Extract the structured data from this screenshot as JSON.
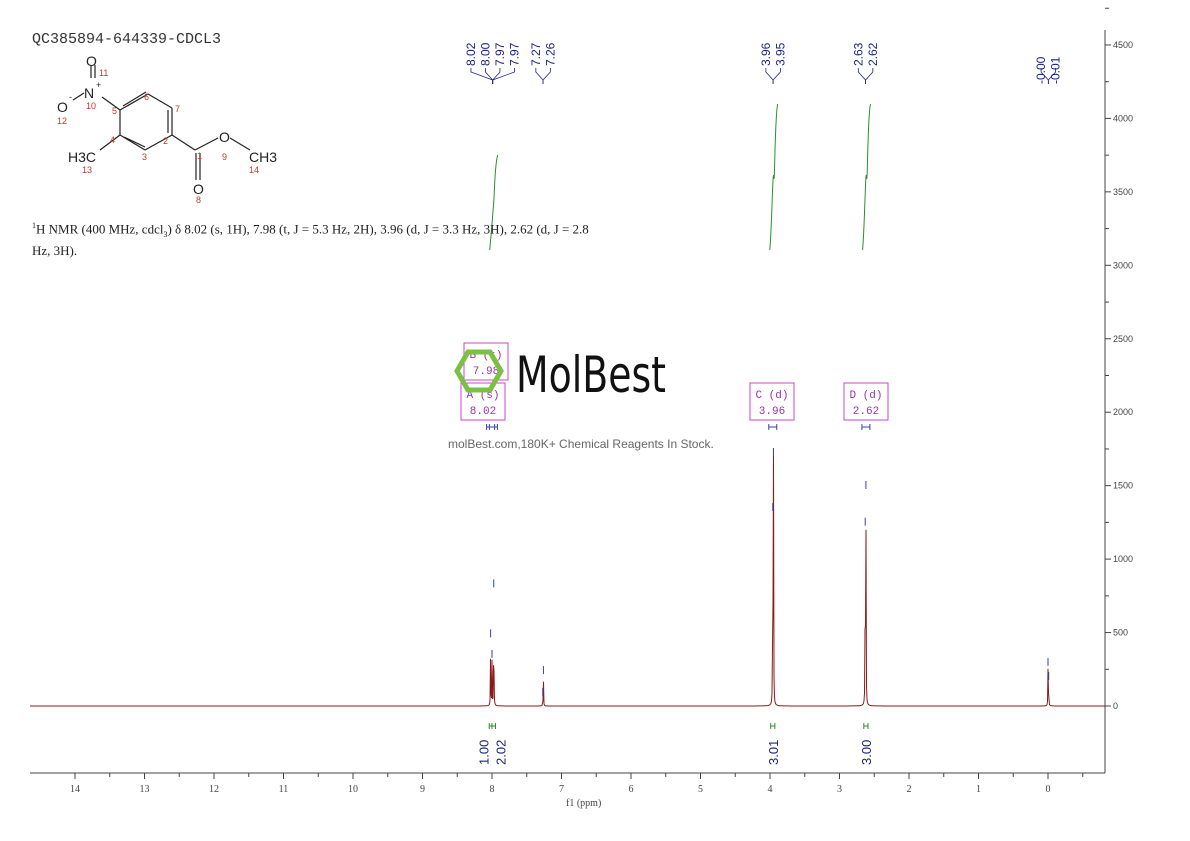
{
  "title": "QC385894-644339-CDCL3",
  "nmr_description": {
    "prefix_sup": "1",
    "text": "H NMR (400 MHz, cdcl",
    "sub": "3",
    "rest": ") δ 8.02 (s, 1H), 7.98 (t, J = 5.3 Hz, 2H), 3.96 (d, J = 3.3 Hz, 3H), 2.62 (d, J = 2.8 Hz, 3H)."
  },
  "structure": {
    "atoms": {
      "O11": "O",
      "N10": "N",
      "charge_plus": "+",
      "O12": "O",
      "charge_minus": "-",
      "CH3_13": "H3C",
      "O9": "O",
      "CH3_14": "CH3",
      "O8": "O"
    },
    "numbers": [
      "1",
      "2",
      "3",
      "4",
      "5",
      "6",
      "7",
      "8",
      "9",
      "10",
      "11",
      "12",
      "13",
      "14"
    ]
  },
  "watermark": {
    "logo_text": "MolBest",
    "tagline": "molBest.com,180K+ Chemical Reagents In Stock.",
    "logo_color": "#7ac143"
  },
  "chart_data": {
    "type": "line",
    "xlabel": "f1 (ppm)",
    "xlim": [
      14.6,
      -0.8
    ],
    "ylim": [
      -450,
      4600
    ],
    "x_ticks": [
      "14",
      "13",
      "12",
      "11",
      "10",
      "9",
      "8",
      "7",
      "6",
      "5",
      "4",
      "3",
      "2",
      "1",
      "0"
    ],
    "y_ticks": [
      "0",
      "500",
      "1000",
      "1500",
      "2000",
      "2500",
      "3000",
      "3500",
      "4000",
      "4500"
    ],
    "spectrum_color": "#8b1a1a",
    "integral_color": "#2e8b2e",
    "label_color": "#1a237e",
    "multiplet_box_color": "#cc44cc",
    "peaks": [
      {
        "ppm": 8.02,
        "intensity": 440
      },
      {
        "ppm": 8.0,
        "intensity": 300
      },
      {
        "ppm": 7.975,
        "intensity": 780
      },
      {
        "ppm": 7.27,
        "intensity": 40
      },
      {
        "ppm": 7.26,
        "intensity": 190
      },
      {
        "ppm": 3.96,
        "intensity": 1300
      },
      {
        "ppm": 3.95,
        "intensity": 1675
      },
      {
        "ppm": 2.63,
        "intensity": 1200
      },
      {
        "ppm": 2.62,
        "intensity": 1450
      },
      {
        "ppm": 0.0,
        "intensity": 245
      },
      {
        "ppm": -0.01,
        "intensity": 150
      }
    ],
    "peak_label_groups": [
      {
        "labels": [
          "8.02",
          "8.00",
          "7.97",
          "7.97"
        ],
        "ppm": 7.99
      },
      {
        "labels": [
          "7.27",
          "7.26"
        ],
        "ppm": 7.265
      },
      {
        "labels": [
          "3.96",
          "3.95"
        ],
        "ppm": 3.955
      },
      {
        "labels": [
          "2.63",
          "2.62"
        ],
        "ppm": 2.625
      },
      {
        "labels": [
          "-0.00",
          "-0.01"
        ],
        "ppm": -0.005
      }
    ],
    "integrals": [
      {
        "from": 8.04,
        "to": 8.0,
        "value": "1.00"
      },
      {
        "from": 8.0,
        "to": 7.95,
        "value": "2.02"
      },
      {
        "from": 3.99,
        "to": 3.93,
        "value": "3.01"
      },
      {
        "from": 2.65,
        "to": 2.59,
        "value": "3.00"
      }
    ],
    "multiplets": [
      {
        "name": "B (t)",
        "shift": "7.98",
        "ppm": 7.98
      },
      {
        "name": "A (s)",
        "shift": "8.02",
        "ppm": 8.02
      },
      {
        "name": "C (d)",
        "shift": "3.96",
        "ppm": 3.96
      },
      {
        "name": "D (d)",
        "shift": "2.62",
        "ppm": 2.62
      }
    ]
  }
}
